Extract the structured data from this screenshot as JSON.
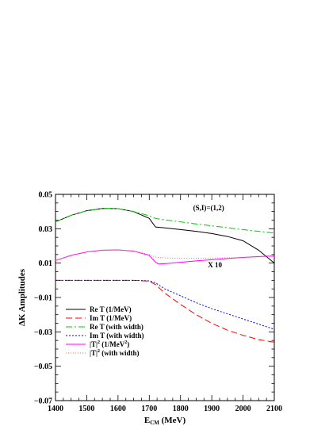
{
  "chart_data": {
    "type": "line",
    "xlabel": "E",
    "xlabel_sub": "CM",
    "xlabel_unit": " (MeV)",
    "ylabel": "ΔK Amplitudes",
    "xlim": [
      1400,
      2100
    ],
    "ylim": [
      -0.07,
      0.05
    ],
    "xticks": [
      1400,
      1500,
      1600,
      1700,
      1800,
      1900,
      2000,
      2100
    ],
    "yticks": [
      -0.07,
      -0.05,
      -0.03,
      -0.01,
      0.01,
      0.03,
      0.05
    ],
    "ytick_labels": [
      "−0.07",
      "−0.05",
      "−0.03",
      "−0.01",
      "0.01",
      "0.03",
      "0.05"
    ],
    "grid": false,
    "legend_position": "bottom-left",
    "annotations": [
      {
        "text": "(S,I)=(1,2)",
        "x": 1890,
        "y": 0.0407
      },
      {
        "text": "X 10",
        "x": 1910,
        "y": 0.0075
      }
    ],
    "series": [
      {
        "name": "Re T (1/MeV)",
        "name_prefix": "Re T ",
        "name_unit": "(1/MeV)",
        "color": "#000000",
        "dash": "solid",
        "x": [
          1400,
          1450,
          1500,
          1550,
          1600,
          1650,
          1700,
          1720,
          1750,
          1800,
          1850,
          1900,
          1950,
          2000,
          2050,
          2100
        ],
        "y": [
          0.034,
          0.0378,
          0.0405,
          0.0418,
          0.0417,
          0.04,
          0.036,
          0.031,
          0.0305,
          0.0295,
          0.0285,
          0.0272,
          0.0255,
          0.023,
          0.0175,
          0.01
        ]
      },
      {
        "name": "Im T (1/MeV)",
        "name_prefix": "Im T ",
        "name_unit": "(1/MeV)",
        "color": "#ff0000",
        "dash": "8,4",
        "x": [
          1400,
          1500,
          1600,
          1650,
          1700,
          1720,
          1750,
          1800,
          1850,
          1900,
          1950,
          2000,
          2050,
          2100
        ],
        "y": [
          0.0,
          0.0,
          0.0,
          0.0,
          -0.0005,
          -0.0025,
          -0.0075,
          -0.014,
          -0.02,
          -0.025,
          -0.029,
          -0.032,
          -0.0345,
          -0.036
        ]
      },
      {
        "name": "Re T (with width)",
        "name_prefix": "Re T ",
        "name_unit": "(with width)",
        "color": "#00cc00",
        "dash": "8,3,2,3",
        "x": [
          1400,
          1450,
          1500,
          1550,
          1600,
          1650,
          1700,
          1720,
          1750,
          1800,
          1850,
          1900,
          1950,
          2000,
          2050,
          2100
        ],
        "y": [
          0.034,
          0.0378,
          0.0405,
          0.0418,
          0.0417,
          0.04,
          0.0375,
          0.036,
          0.0352,
          0.034,
          0.0328,
          0.0317,
          0.0306,
          0.0295,
          0.0285,
          0.0275
        ]
      },
      {
        "name": "Im T (with width)",
        "name_prefix": "Im T ",
        "name_unit": "(with width)",
        "color": "#0000ff",
        "dash": "2,2",
        "x": [
          1400,
          1500,
          1600,
          1650,
          1700,
          1720,
          1750,
          1800,
          1850,
          1900,
          1950,
          2000,
          2050,
          2100
        ],
        "y": [
          0.0,
          0.0,
          0.0,
          0.0,
          -0.0003,
          -0.0015,
          -0.005,
          -0.009,
          -0.013,
          -0.0165,
          -0.0195,
          -0.0225,
          -0.0255,
          -0.0285
        ]
      },
      {
        "name": "|T|^2 (1/MeV^2)",
        "name_prefix": "|T|",
        "name_sup": "2",
        "name_unit": " (1/MeV",
        "name_unit_sup": "2",
        "name_unit_end": ")",
        "color": "#ff00ff",
        "dash": "solid",
        "x": [
          1400,
          1450,
          1500,
          1550,
          1600,
          1650,
          1700,
          1720,
          1730,
          1750,
          1800,
          1850,
          1900,
          1950,
          2000,
          2050,
          2100
        ],
        "y": [
          0.0115,
          0.0145,
          0.0165,
          0.0175,
          0.0177,
          0.017,
          0.0145,
          0.0105,
          0.0095,
          0.0097,
          0.0105,
          0.0113,
          0.012,
          0.0127,
          0.0133,
          0.0138,
          0.0142
        ]
      },
      {
        "name": "|T|^2 (with width)",
        "name_prefix": "|T|",
        "name_sup": "2",
        "name_unit": " (with width)",
        "name_unit_sup": "",
        "name_unit_end": "",
        "color": "#ff6666",
        "dash": "1,2",
        "x": [
          1400,
          1450,
          1500,
          1550,
          1600,
          1650,
          1700,
          1720,
          1750,
          1800,
          1850,
          1900,
          1950,
          2000,
          2050,
          2100
        ],
        "y": [
          0.0115,
          0.0145,
          0.0165,
          0.0175,
          0.0177,
          0.017,
          0.015,
          0.0135,
          0.013,
          0.0128,
          0.0128,
          0.0129,
          0.0131,
          0.0133,
          0.0136,
          0.014
        ]
      }
    ]
  }
}
